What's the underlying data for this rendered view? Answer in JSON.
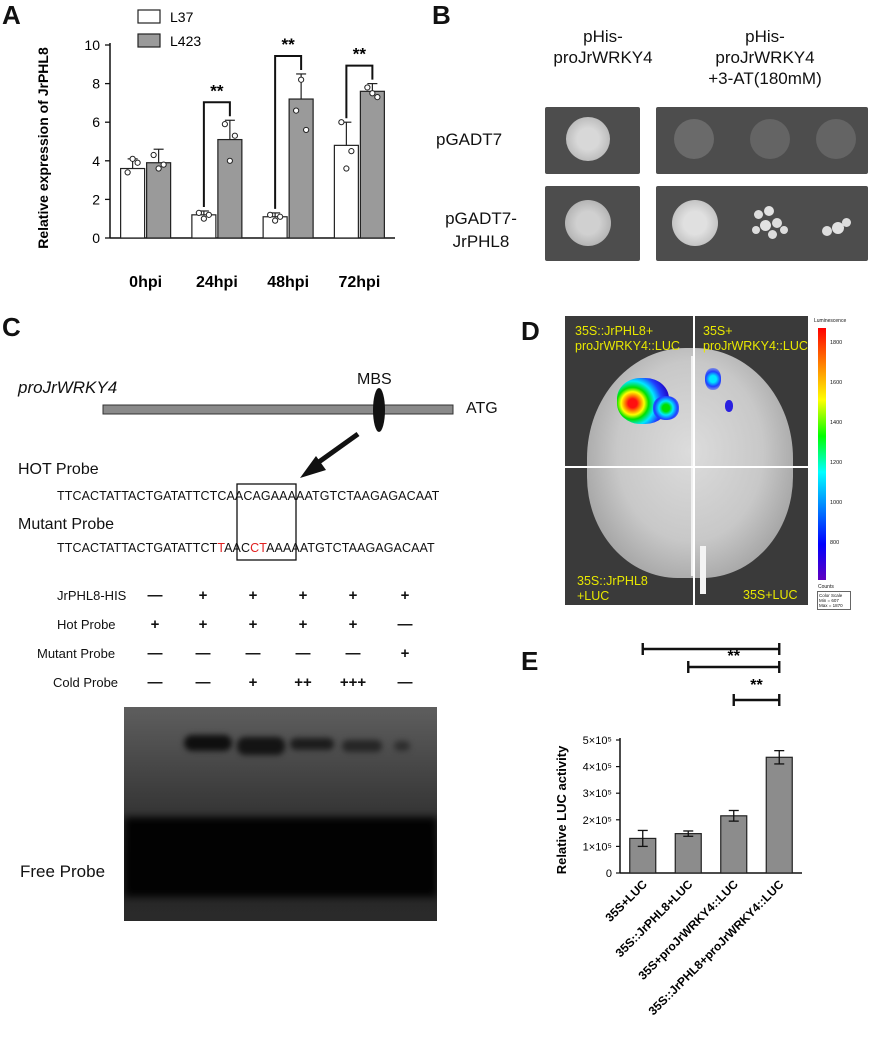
{
  "panels": {
    "A": "A",
    "B": "B",
    "C": "C",
    "D": "D",
    "E": "E"
  },
  "chart_data": [
    {
      "type": "bar",
      "ylabel": "Relative expression of JrPHL8",
      "categories": [
        "0hpi",
        "24hpi",
        "48hpi",
        "72hpi"
      ],
      "ylim": [
        0,
        10
      ],
      "yticks": [
        0,
        2,
        4,
        6,
        8,
        10
      ],
      "series": [
        {
          "name": "L37",
          "color": "#ffffff",
          "values": [
            3.6,
            1.2,
            1.1,
            4.8
          ],
          "errors": [
            0.5,
            0.2,
            0.2,
            1.2
          ]
        },
        {
          "name": "L423",
          "color": "#9a9a9a",
          "values": [
            3.9,
            5.1,
            7.2,
            7.6
          ],
          "errors": [
            0.7,
            1.0,
            1.3,
            0.4
          ]
        }
      ],
      "points": [
        [
          [
            3.4,
            4.1,
            3.9
          ],
          [
            4.3,
            3.6,
            3.8
          ]
        ],
        [
          [
            1.3,
            1.0,
            1.2
          ],
          [
            5.9,
            4.0,
            5.3
          ]
        ],
        [
          [
            1.2,
            0.9,
            1.1
          ],
          [
            6.6,
            8.2,
            5.6
          ]
        ],
        [
          [
            6.0,
            3.6,
            4.5
          ],
          [
            7.8,
            7.5,
            7.3
          ]
        ]
      ],
      "significance": [
        "",
        "**",
        "**",
        "**"
      ]
    },
    {
      "type": "bar",
      "ylabel": "Relative LUC activity",
      "categories": [
        "35S+LUC",
        "35S::JrPHL8+LUC",
        "35S+proJrWRKY4::LUC",
        "35S::JrPHL8+proJrWRKY4::LUC"
      ],
      "values": [
        130000,
        148000,
        215000,
        435000
      ],
      "errors": [
        30000,
        10000,
        20000,
        25000
      ],
      "ylim": [
        0,
        500000
      ],
      "yticks": [
        "0",
        "1×10⁵",
        "2×10⁵",
        "3×10⁵",
        "4×10⁵",
        "5×10⁵"
      ],
      "brackets": [
        {
          "from": 0,
          "to": 3,
          "label": "**"
        },
        {
          "from": 1,
          "to": 3,
          "label": "**"
        },
        {
          "from": 2,
          "to": 3,
          "label": "**"
        }
      ]
    }
  ],
  "panelB": {
    "col1": "pHis-\nproJrWRKY4",
    "col2": "pHis-\nproJrWRKY4\n+3-AT(180mM)",
    "row1": "pGADT7",
    "row2": "pGADT7-\nJrPHL8"
  },
  "panelC": {
    "promoter": "proJrWRKY4",
    "mbs": "MBS",
    "atg": "ATG",
    "hot_title": "HOT Probe",
    "hot_seq_a": "TTCACTATTACTGATATTCT",
    "hot_seq_box": "CAACAG",
    "hot_seq_b": "AAAAATGTCTAAGAGACAAT",
    "mut_title": "Mutant Probe",
    "mut_seq_a": "TTCACTATTACTGATATTCT",
    "mut_seq_r1": "T",
    "mut_seq_m": "AAC",
    "mut_seq_r2": "CT",
    "mut_seq_b": "AAAAATGTCTAAGAGACAAT",
    "rows": [
      {
        "label": "JrPHL8-HIS",
        "values": [
          "—",
          "+",
          "+",
          "+",
          "+",
          "+"
        ]
      },
      {
        "label": "Hot Probe",
        "values": [
          "+",
          "+",
          "+",
          "+",
          "+",
          "—"
        ]
      },
      {
        "label": "Mutant Probe",
        "values": [
          "—",
          "—",
          "—",
          "—",
          "—",
          "+"
        ]
      },
      {
        "label": "Cold Probe",
        "values": [
          "—",
          "—",
          "+",
          "++",
          "+++",
          "—"
        ]
      }
    ],
    "free_probe": "Free Probe"
  },
  "panelD": {
    "tl": "35S::JrPHL8+\nproJrWRKY4::LUC",
    "tr": "35S+\nproJrWRKY4::LUC",
    "bl": "35S::JrPHL8\n+LUC",
    "br": "35S+LUC",
    "scale_title": "Luminescence",
    "scale_ticks": [
      "1800",
      "1600",
      "1400",
      "1200",
      "1000",
      "800"
    ],
    "scale_bottom": "Counts",
    "scale_box": "Color Scale\nMin = 607\nMax = 1870"
  }
}
